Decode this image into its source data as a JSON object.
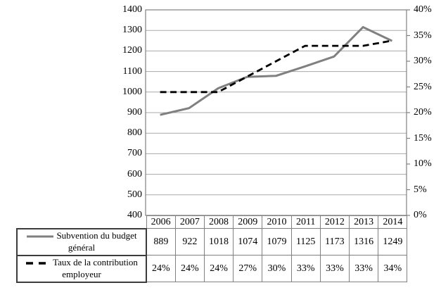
{
  "style": {
    "background": "#ffffff",
    "gridline_color": "#a8a8a8",
    "axis_color": "#808080",
    "table_border_color": "#808080",
    "legend_border_color": "#3c3c3c",
    "series_solid_color": "#808080",
    "series_dashed_color": "#000000"
  },
  "chart_data": {
    "type": "line",
    "title": "",
    "grid": "horizontal",
    "legend_position": "table-left",
    "categories": [
      "2006",
      "2007",
      "2008",
      "2009",
      "2010",
      "2011",
      "2012",
      "2013",
      "2014"
    ],
    "series": [
      {
        "name": "Subvention du budget général",
        "axis": "left",
        "style": "solid",
        "color": "#808080",
        "values": [
          889,
          922,
          1018,
          1074,
          1079,
          1125,
          1173,
          1316,
          1249
        ],
        "labels": [
          "889",
          "922",
          "1018",
          "1074",
          "1079",
          "1125",
          "1173",
          "1316",
          "1249"
        ]
      },
      {
        "name": "Taux de la contribution employeur",
        "axis": "right",
        "style": "dashed",
        "color": "#000000",
        "values": [
          24,
          24,
          24,
          27,
          30,
          33,
          33,
          33,
          34
        ],
        "labels": [
          "24%",
          "24%",
          "24%",
          "27%",
          "30%",
          "33%",
          "33%",
          "33%",
          "34%"
        ]
      }
    ],
    "left_axis": {
      "min": 400,
      "max": 1400,
      "step": 100,
      "tick_labels": [
        "1400",
        "1300",
        "1200",
        "1100",
        "1000",
        "900",
        "800",
        "700",
        "600",
        "500",
        "400"
      ]
    },
    "right_axis": {
      "min": 0,
      "max": 40,
      "step": 5,
      "tick_labels": [
        "40%",
        "35%",
        "30%",
        "25%",
        "20%",
        "15%",
        "10%",
        "5%",
        "0%"
      ]
    }
  },
  "legend": {
    "items": [
      {
        "symbol": "solid-gray-line-icon",
        "label_lines": [
          "Subvention du budget",
          "général"
        ]
      },
      {
        "symbol": "dashed-black-line-icon",
        "label_lines": [
          "Taux de la contribution",
          "employeur"
        ]
      }
    ]
  }
}
